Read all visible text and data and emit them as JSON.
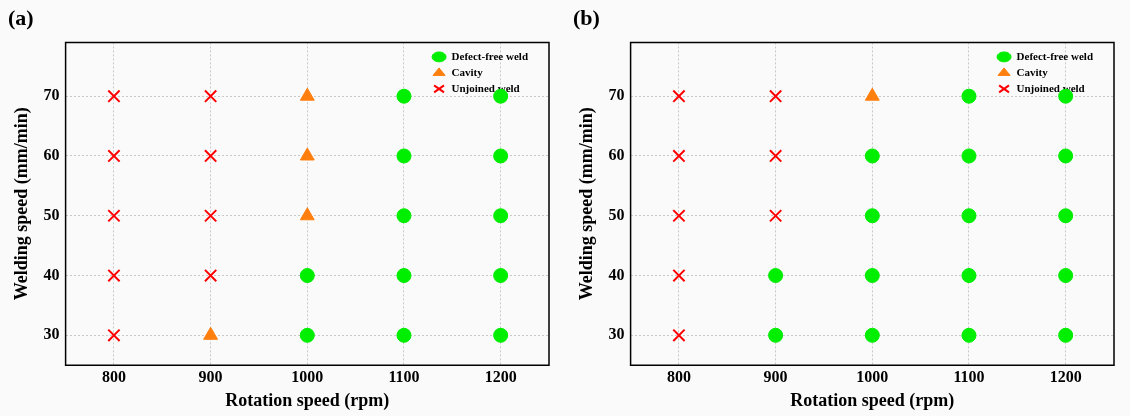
{
  "chart_data": [
    {
      "type": "scatter",
      "title": "(a)",
      "xlabel": "Rotation speed (rpm)",
      "ylabel": "Welding speed (mm/min)",
      "xlim": [
        750,
        1250
      ],
      "xticks": [
        800,
        900,
        1000,
        1100,
        1200
      ],
      "ylim": [
        25,
        79
      ],
      "yticks": [
        30,
        40,
        50,
        60,
        70
      ],
      "grid": true,
      "legend": "top right",
      "series": [
        {
          "name": "Defect-free weld",
          "color": "#00ee00",
          "marker": "circle",
          "x": [
            1000,
            1000,
            1100,
            1100,
            1100,
            1100,
            1100,
            1200,
            1200,
            1200,
            1200,
            1200
          ],
          "values": [
            30,
            40,
            30,
            40,
            50,
            60,
            70,
            30,
            40,
            50,
            60,
            70
          ]
        },
        {
          "name": "Cavity",
          "color": "#ff7f0e",
          "marker": "triangle",
          "x": [
            900,
            1000,
            1000,
            1000
          ],
          "values": [
            30,
            50,
            60,
            70
          ]
        },
        {
          "name": "Unjoined weld",
          "color": "#ff0000",
          "marker": "cross",
          "x": [
            800,
            800,
            800,
            800,
            800,
            900,
            900,
            900,
            900
          ],
          "values": [
            30,
            40,
            50,
            60,
            70,
            40,
            50,
            60,
            70
          ]
        }
      ]
    },
    {
      "type": "scatter",
      "title": "(b)",
      "xlabel": "Rotation speed (rpm)",
      "ylabel": "Welding speed (mm/min)",
      "xlim": [
        750,
        1250
      ],
      "xticks": [
        800,
        900,
        1000,
        1100,
        1200
      ],
      "ylim": [
        25,
        79
      ],
      "yticks": [
        30,
        40,
        50,
        60,
        70
      ],
      "grid": true,
      "legend": "top right",
      "series": [
        {
          "name": "Defect-free weld",
          "color": "#00ee00",
          "marker": "circle",
          "x": [
            900,
            900,
            1000,
            1000,
            1000,
            1000,
            1100,
            1100,
            1100,
            1100,
            1100,
            1200,
            1200,
            1200,
            1200,
            1200
          ],
          "values": [
            30,
            40,
            30,
            40,
            50,
            60,
            30,
            40,
            50,
            60,
            70,
            30,
            40,
            50,
            60,
            70
          ]
        },
        {
          "name": "Cavity",
          "color": "#ff7f0e",
          "marker": "triangle",
          "x": [
            1000
          ],
          "values": [
            70
          ]
        },
        {
          "name": "Unjoined weld",
          "color": "#ff0000",
          "marker": "cross",
          "x": [
            800,
            800,
            800,
            800,
            800,
            900,
            900,
            900
          ],
          "values": [
            30,
            40,
            50,
            60,
            70,
            50,
            60,
            70
          ]
        }
      ]
    }
  ]
}
